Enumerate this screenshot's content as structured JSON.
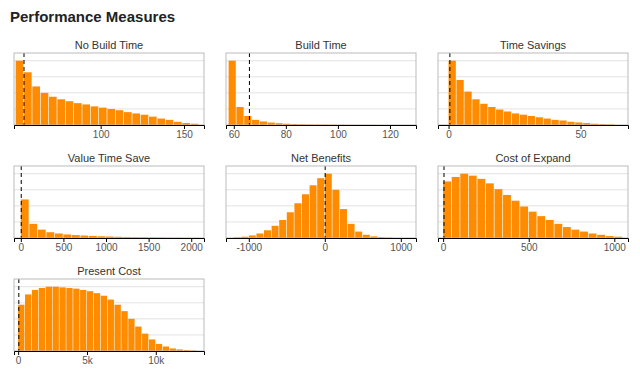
{
  "title": "Performance Measures",
  "chart_data": [
    {
      "type": "histogram",
      "title": "No Build Time",
      "bins": [
        49,
        54,
        59,
        64,
        69,
        74,
        79,
        84,
        89,
        94,
        99,
        104,
        109,
        114,
        119,
        124,
        129,
        134,
        139,
        144,
        149,
        154,
        159
      ],
      "values": [
        1.0,
        0.82,
        0.6,
        0.5,
        0.44,
        0.4,
        0.37,
        0.34,
        0.32,
        0.29,
        0.27,
        0.25,
        0.23,
        0.2,
        0.18,
        0.16,
        0.13,
        0.1,
        0.08,
        0.05,
        0.03,
        0.02
      ],
      "color": "#ff8c00",
      "xlim": [
        48,
        162
      ],
      "xticks": [
        100,
        150
      ],
      "ylim": [
        0,
        1.12
      ],
      "yticks": [
        0.25,
        0.5,
        0.75,
        1.0
      ],
      "grid": true,
      "tick_labels": "x",
      "vline": 54
    },
    {
      "type": "histogram",
      "title": "Build Time",
      "bins": [
        58,
        61,
        64,
        67,
        70,
        73,
        76,
        79,
        82,
        85,
        88,
        91,
        94,
        97,
        100,
        103,
        106,
        109,
        112,
        115
      ],
      "values": [
        1.0,
        0.28,
        0.14,
        0.08,
        0.055,
        0.038,
        0.028,
        0.02,
        0.015,
        0.012,
        0.009,
        0.007,
        0.006,
        0.005,
        0.004,
        0.003,
        0.003,
        0.002,
        0.002
      ],
      "color": "#ff8c00",
      "xlim": [
        57,
        130
      ],
      "xticks": [
        60,
        80,
        100,
        120
      ],
      "ylim": [
        0,
        1.12
      ],
      "yticks": [
        0.25,
        0.5,
        0.75,
        1.0
      ],
      "grid": true,
      "tick_labels": "x",
      "vline": 66
    },
    {
      "type": "histogram",
      "title": "Time Savings",
      "bins": [
        0,
        3,
        6,
        9,
        12,
        15,
        18,
        21,
        24,
        27,
        30,
        33,
        36,
        39,
        42,
        45,
        48,
        51,
        54,
        57,
        60,
        63
      ],
      "values": [
        1.0,
        0.7,
        0.52,
        0.4,
        0.33,
        0.28,
        0.24,
        0.21,
        0.18,
        0.16,
        0.14,
        0.12,
        0.1,
        0.08,
        0.07,
        0.05,
        0.04,
        0.03,
        0.02,
        0.015,
        0.01
      ],
      "color": "#ff8c00",
      "xlim": [
        -4,
        68
      ],
      "xticks": [
        0,
        50
      ],
      "ylim": [
        0,
        1.12
      ],
      "yticks": [
        0.25,
        0.5,
        0.75,
        1.0
      ],
      "grid": true,
      "tick_labels": "x",
      "vline": 0.5
    },
    {
      "type": "histogram",
      "title": "Value Time Save",
      "bins": [
        0,
        100,
        200,
        300,
        400,
        500,
        600,
        700,
        800,
        900,
        1000,
        1100,
        1200,
        1300,
        1400,
        1500,
        1600,
        1700,
        1800,
        1900,
        2000,
        2100
      ],
      "values": [
        0.6,
        0.22,
        0.13,
        0.09,
        0.07,
        0.055,
        0.045,
        0.038,
        0.032,
        0.027,
        0.023,
        0.019,
        0.016,
        0.013,
        0.011,
        0.009,
        0.007,
        0.005,
        0.004,
        0.003,
        0.002
      ],
      "color": "#ff8c00",
      "xlim": [
        -80,
        2150
      ],
      "xticks": [
        0,
        500,
        1000,
        1500,
        2000
      ],
      "ylim": [
        0,
        1.12
      ],
      "yticks": [
        0.25,
        0.5,
        0.75,
        1.0
      ],
      "grid": true,
      "tick_labels": "x",
      "vline": 5
    },
    {
      "type": "histogram",
      "title": "Net Benefits",
      "bins": [
        -1200,
        -1100,
        -1000,
        -900,
        -800,
        -700,
        -600,
        -500,
        -400,
        -300,
        -200,
        -100,
        0,
        100,
        200,
        300,
        400,
        500,
        600,
        700,
        800,
        900
      ],
      "values": [
        0.01,
        0.02,
        0.04,
        0.07,
        0.12,
        0.19,
        0.28,
        0.4,
        0.54,
        0.68,
        0.82,
        0.93,
        1.0,
        0.75,
        0.45,
        0.22,
        0.1,
        0.05,
        0.025,
        0.012,
        0.006
      ],
      "color": "#ff8c00",
      "xlim": [
        -1300,
        1200
      ],
      "xticks": [
        -1000,
        0,
        1000
      ],
      "ylim": [
        0,
        1.12
      ],
      "yticks": [
        0.25,
        0.5,
        0.75,
        1.0
      ],
      "grid": true,
      "tick_labels": "x",
      "vline": 5
    },
    {
      "type": "histogram",
      "title": "Cost of Expand",
      "bins": [
        0,
        50,
        100,
        150,
        200,
        250,
        300,
        350,
        400,
        450,
        500,
        550,
        600,
        650,
        700,
        750,
        800,
        850,
        900,
        950,
        1000,
        1050
      ],
      "values": [
        0.88,
        0.95,
        1.0,
        0.97,
        0.92,
        0.85,
        0.76,
        0.67,
        0.58,
        0.49,
        0.41,
        0.34,
        0.28,
        0.22,
        0.17,
        0.13,
        0.1,
        0.07,
        0.05,
        0.03,
        0.02
      ],
      "color": "#ff8c00",
      "xlim": [
        -30,
        1080
      ],
      "xticks": [
        0,
        500,
        1000
      ],
      "ylim": [
        0,
        1.12
      ],
      "yticks": [
        0.25,
        0.5,
        0.75,
        1.0
      ],
      "grid": true,
      "tick_labels": "x",
      "vline": 5
    },
    {
      "type": "histogram",
      "title": "Present Cost",
      "bins": [
        0,
        500,
        1000,
        1500,
        2000,
        2500,
        3000,
        3500,
        4000,
        4500,
        5000,
        5500,
        6000,
        6500,
        7000,
        7500,
        8000,
        8500,
        9000,
        9500,
        10000,
        10500,
        11000,
        11500,
        12000,
        12500,
        13000
      ],
      "values": [
        0.72,
        0.88,
        0.95,
        0.98,
        1.0,
        1.0,
        0.99,
        0.98,
        0.97,
        0.95,
        0.93,
        0.9,
        0.86,
        0.8,
        0.72,
        0.62,
        0.5,
        0.38,
        0.27,
        0.18,
        0.11,
        0.07,
        0.04,
        0.025,
        0.015,
        0.008
      ],
      "color": "#ff8c00",
      "xlim": [
        -300,
        13500
      ],
      "xticks": [
        0,
        {
          "value": 5000,
          "label": "5k"
        },
        {
          "value": 10000,
          "label": "10k"
        }
      ],
      "ylim": [
        0,
        1.12
      ],
      "yticks": [
        0.25,
        0.5,
        0.75,
        1.0
      ],
      "grid": true,
      "tick_labels": "x",
      "vline": 50
    }
  ]
}
